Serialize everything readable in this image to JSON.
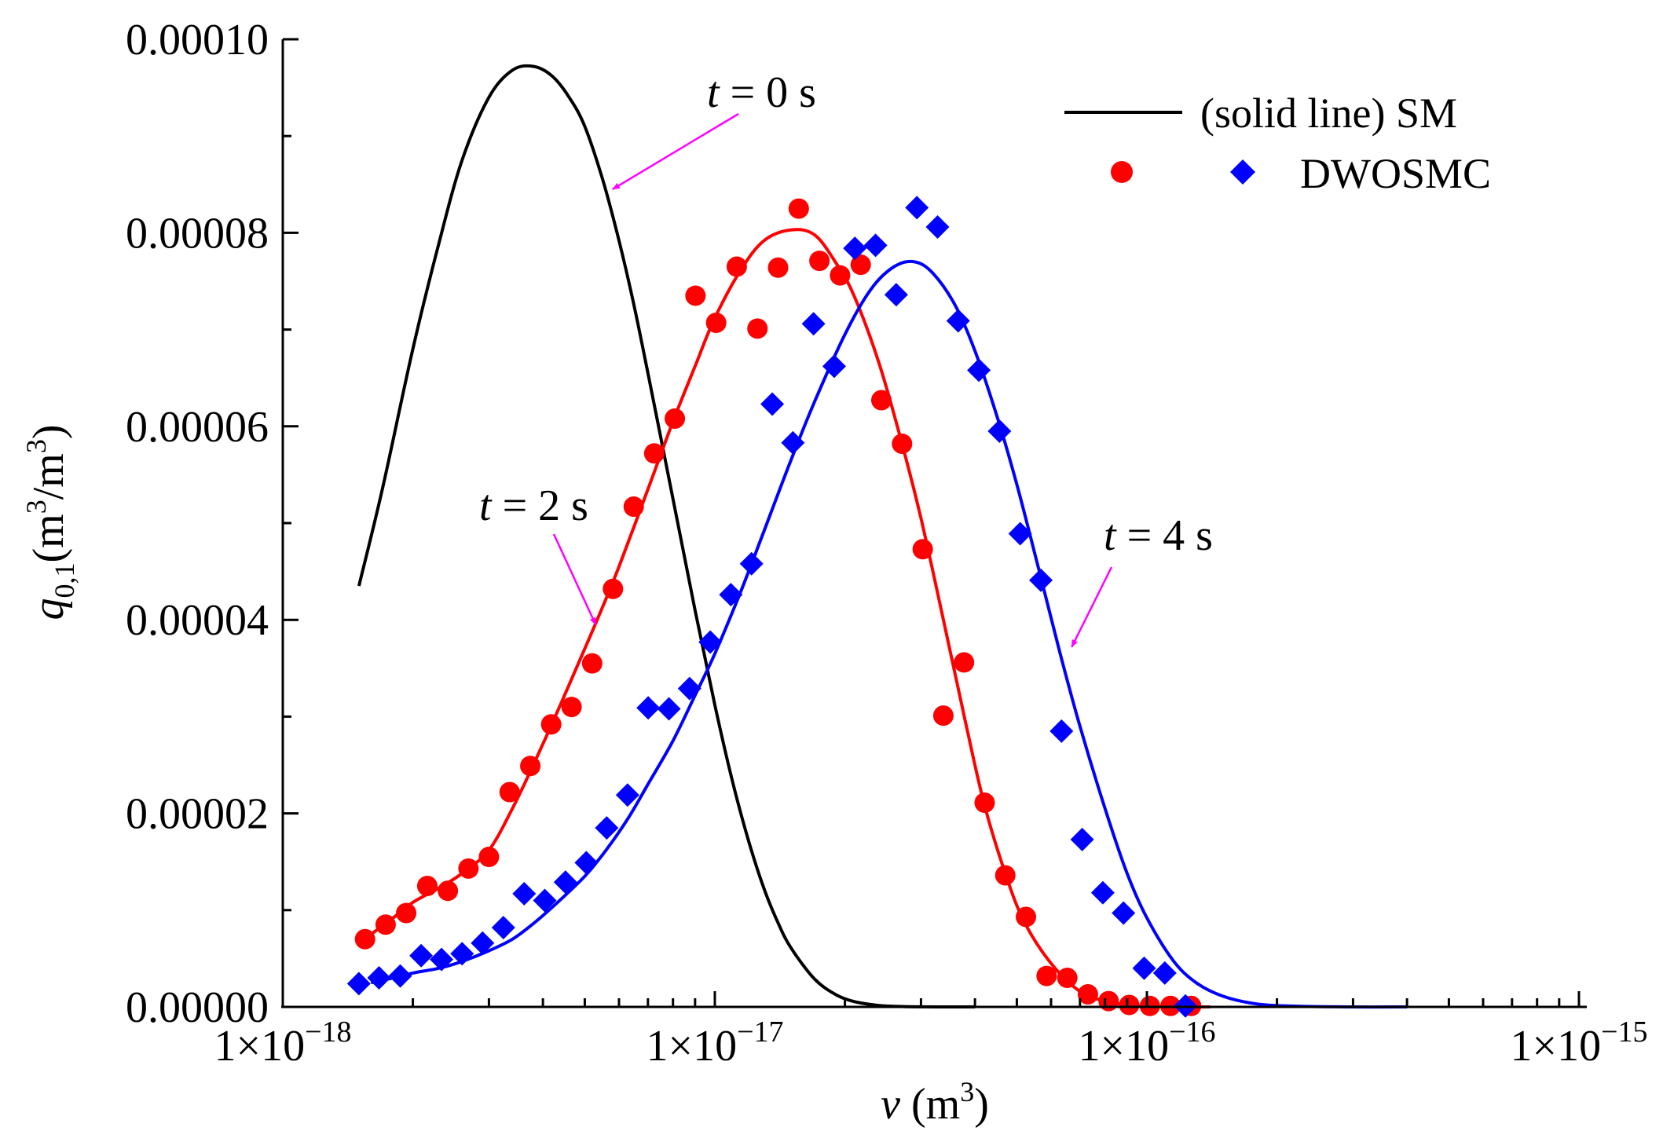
{
  "chart_data": {
    "type": "scatter",
    "x_scale": "log",
    "xlim": [
      1e-18,
      1e-15
    ],
    "ylim": [
      0,
      0.0001
    ],
    "xlabel_var": "v",
    "xlabel_unit": " (m",
    "xlabel_exp": "3",
    "xlabel_close": ")",
    "ylabel_var": "q",
    "ylabel_sub": "0,1",
    "ylabel_unit": "(m",
    "ylabel_exp": "3",
    "ylabel_mid": "/m",
    "ylabel_exp2": "3",
    "ylabel_close": ")",
    "y_ticks": [
      {
        "value": 0,
        "label": "0.00000"
      },
      {
        "value": 2e-05,
        "label": "0.00002"
      },
      {
        "value": 4e-05,
        "label": "0.00004"
      },
      {
        "value": 6e-05,
        "label": "0.00006"
      },
      {
        "value": 8e-05,
        "label": "0.00008"
      },
      {
        "value": 0.0001,
        "label": "0.00010"
      }
    ],
    "x_ticks": [
      {
        "value": 1e-18,
        "base": "1×10",
        "exp": "−18"
      },
      {
        "value": 1e-17,
        "base": "1×10",
        "exp": "−17"
      },
      {
        "value": 1e-16,
        "base": "1×10",
        "exp": "−16"
      },
      {
        "value": 1e-15,
        "base": "1×10",
        "exp": "−15"
      }
    ],
    "grid": false,
    "legend": {
      "position": "top-right",
      "line_label": "(solid line)  SM",
      "marker_label": "DWOSMC"
    },
    "annotations": [
      {
        "var": "t",
        "text": " = 0 s",
        "at_x": 5.8e-18,
        "at_y": 8.45e-05,
        "color": "#ff00ff"
      },
      {
        "var": "t",
        "text": " = 2 s",
        "at_x": 5.3e-18,
        "at_y": 3.95e-05,
        "color": "#ff00ff"
      },
      {
        "var": "t",
        "text": " = 4 s",
        "at_x": 6.7e-17,
        "at_y": 3.72e-05,
        "color": "#ff00ff"
      }
    ],
    "series": [
      {
        "kind": "line",
        "color": "#000000",
        "x": [
          1.5e-18,
          1.7e-18,
          2e-18,
          2.3e-18,
          2.6e-18,
          3e-18,
          3.4e-18,
          3.8e-18,
          4.2e-18,
          4.6e-18,
          5e-18,
          5.5e-18,
          6e-18,
          6.5e-18,
          7e-18,
          8e-18,
          9e-18,
          1e-17,
          1.1e-17,
          1.2e-17,
          1.3e-17,
          1.4e-17,
          1.5e-17,
          1.7e-17,
          1.9e-17,
          2.1e-17,
          2.4e-17,
          2.7e-17,
          3e-17,
          3.5e-17,
          4e-17
        ],
        "y": [
          4.35e-05,
          5.35e-05,
          6.8e-05,
          7.9e-05,
          8.75e-05,
          9.4e-05,
          9.68e-05,
          9.72e-05,
          9.62e-05,
          9.4e-05,
          9.1e-05,
          8.55e-05,
          7.92e-05,
          7.25e-05,
          6.55e-05,
          5.25e-05,
          4.1e-05,
          3.12e-05,
          2.32e-05,
          1.7e-05,
          1.22e-05,
          8.7e-06,
          6.1e-06,
          2.9e-06,
          1.3e-06,
          5.5e-07,
          1.5e-07,
          4e-08,
          1e-08,
          0,
          0
        ]
      },
      {
        "kind": "line",
        "color": "#ff0000",
        "x": [
          1.6e-18,
          1.8e-18,
          2e-18,
          2.3e-18,
          2.6e-18,
          3e-18,
          3.4e-18,
          3.8e-18,
          4.3e-18,
          4.8e-18,
          5.4e-18,
          6e-18,
          7e-18,
          8e-18,
          9e-18,
          1e-17,
          1.15e-17,
          1.3e-17,
          1.5e-17,
          1.7e-17,
          1.9e-17,
          2.1e-17,
          2.4e-17,
          2.7e-17,
          3e-17,
          3.4e-17,
          3.8e-17,
          4.2e-17,
          4.7e-17,
          5.2e-17,
          6e-17,
          7e-17,
          8e-17,
          9e-17,
          1e-16,
          1.2e-16,
          1.4e-16
        ],
        "y": [
          7.5e-06,
          9.2e-06,
          1.08e-05,
          1.23e-05,
          1.38e-05,
          1.62e-05,
          2.05e-05,
          2.5e-05,
          3.03e-05,
          3.52e-05,
          4.05e-05,
          4.55e-05,
          5.35e-05,
          6.05e-05,
          6.62e-05,
          7.12e-05,
          7.62e-05,
          7.92e-05,
          8.03e-05,
          7.98e-05,
          7.7e-05,
          7.35e-05,
          6.65e-05,
          5.85e-05,
          5.05e-05,
          3.95e-05,
          2.95e-05,
          2.1e-05,
          1.38e-05,
          8.8e-06,
          4.5e-06,
          1.6e-06,
          6e-07,
          2e-07,
          5e-08,
          0,
          0
        ]
      },
      {
        "kind": "line",
        "color": "#0000ff",
        "x": [
          1.6e-18,
          1.8e-18,
          2e-18,
          2.3e-18,
          2.6e-18,
          3e-18,
          3.4e-18,
          3.8e-18,
          4.3e-18,
          5e-18,
          5.6e-18,
          6.3e-18,
          7e-18,
          8e-18,
          9e-18,
          1e-17,
          1.15e-17,
          1.3e-17,
          1.5e-17,
          1.7e-17,
          2e-17,
          2.3e-17,
          2.6e-17,
          2.9e-17,
          3.2e-17,
          3.6e-17,
          4e-17,
          4.5e-17,
          5e-17,
          5.6e-17,
          6.3e-17,
          7e-17,
          8e-17,
          9e-17,
          1e-16,
          1.15e-16,
          1.3e-16,
          1.5e-16,
          1.8e-16,
          2.2e-16,
          3e-16,
          4e-16
        ],
        "y": [
          2.5e-06,
          3e-06,
          3.5e-06,
          4e-06,
          4.7e-06,
          5.8e-06,
          7e-06,
          8.6e-06,
          1.07e-05,
          1.35e-05,
          1.62e-05,
          1.95e-05,
          2.3e-05,
          2.75e-05,
          3.22e-05,
          3.65e-05,
          4.3e-05,
          4.92e-05,
          5.65e-05,
          6.25e-05,
          6.95e-05,
          7.42e-05,
          7.65e-05,
          7.7e-05,
          7.58e-05,
          7.25e-05,
          6.78e-05,
          6.1e-05,
          5.4e-05,
          4.55e-05,
          3.65e-05,
          2.9e-05,
          2.05e-05,
          1.38e-05,
          9.2e-06,
          4.8e-06,
          2.5e-06,
          1.1e-06,
          3e-07,
          8e-08,
          0,
          0
        ]
      },
      {
        "kind": "scatter",
        "marker": "circle",
        "color": "#ff0000",
        "x": [
          1.55e-18,
          1.73e-18,
          1.93e-18,
          2.16e-18,
          2.41e-18,
          2.69e-18,
          3e-18,
          3.35e-18,
          3.74e-18,
          4.18e-18,
          4.66e-18,
          5.2e-18,
          5.81e-18,
          6.49e-18,
          7.24e-18,
          8.08e-18,
          9.02e-18,
          1.007e-17,
          1.124e-17,
          1.255e-17,
          1.401e-17,
          1.564e-17,
          1.746e-17,
          1.949e-17,
          2.176e-17,
          2.429e-17,
          2.712e-17,
          3.028e-17,
          3.38e-17,
          3.773e-17,
          4.212e-17,
          4.702e-17,
          5.249e-17,
          5.86e-17,
          6.542e-17,
          7.303e-17,
          8.153e-17,
          9.101e-17,
          1.016e-16,
          1.134e-16,
          1.266e-16
        ],
        "y": [
          7e-06,
          8.5e-06,
          9.7e-06,
          1.25e-05,
          1.2e-05,
          1.43e-05,
          1.55e-05,
          2.22e-05,
          2.49e-05,
          2.92e-05,
          3.1e-05,
          3.55e-05,
          4.32e-05,
          5.17e-05,
          5.72e-05,
          6.08e-05,
          7.35e-05,
          7.07e-05,
          7.65e-05,
          7.01e-05,
          7.64e-05,
          8.25e-05,
          7.71e-05,
          7.56e-05,
          7.67e-05,
          6.27e-05,
          5.82e-05,
          4.73e-05,
          3.01e-05,
          3.56e-05,
          2.11e-05,
          1.36e-05,
          9.3e-06,
          3.2e-06,
          3e-06,
          1.3e-06,
          6e-07,
          2e-07,
          1e-07,
          1e-07,
          1e-07
        ]
      },
      {
        "kind": "scatter",
        "marker": "diamond",
        "color": "#0000ff",
        "x": [
          1.5e-18,
          1.67e-18,
          1.87e-18,
          2.09e-18,
          2.33e-18,
          2.6e-18,
          2.9e-18,
          3.24e-18,
          3.62e-18,
          4.04e-18,
          4.51e-18,
          5.04e-18,
          5.62e-18,
          6.28e-18,
          7.01e-18,
          7.83e-18,
          8.74e-18,
          9.76e-18,
          1.089e-17,
          1.216e-17,
          1.358e-17,
          1.516e-17,
          1.692e-17,
          1.889e-17,
          2.109e-17,
          2.355e-17,
          2.629e-17,
          2.935e-17,
          3.277e-17,
          3.658e-17,
          4.084e-17,
          4.559e-17,
          5.09e-17,
          5.683e-17,
          6.344e-17,
          7.083e-17,
          7.907e-17,
          8.827e-17,
          9.855e-17,
          1.1e-16,
          1.228e-16
        ],
        "y": [
          2.4e-06,
          3e-06,
          3.2e-06,
          5.3e-06,
          4.9e-06,
          5.5e-06,
          6.6e-06,
          8.2e-06,
          1.17e-05,
          1.1e-05,
          1.29e-05,
          1.49e-05,
          1.85e-05,
          2.19e-05,
          3.09e-05,
          3.08e-05,
          3.29e-05,
          3.77e-05,
          4.26e-05,
          4.58e-05,
          6.23e-05,
          5.83e-05,
          7.06e-05,
          6.62e-05,
          7.84e-05,
          7.87e-05,
          7.36e-05,
          8.26e-05,
          8.06e-05,
          7.09e-05,
          6.58e-05,
          5.95e-05,
          4.89e-05,
          4.41e-05,
          2.85e-05,
          1.73e-05,
          1.18e-05,
          9.7e-06,
          4e-06,
          3.5e-06,
          1e-07
        ]
      }
    ]
  }
}
